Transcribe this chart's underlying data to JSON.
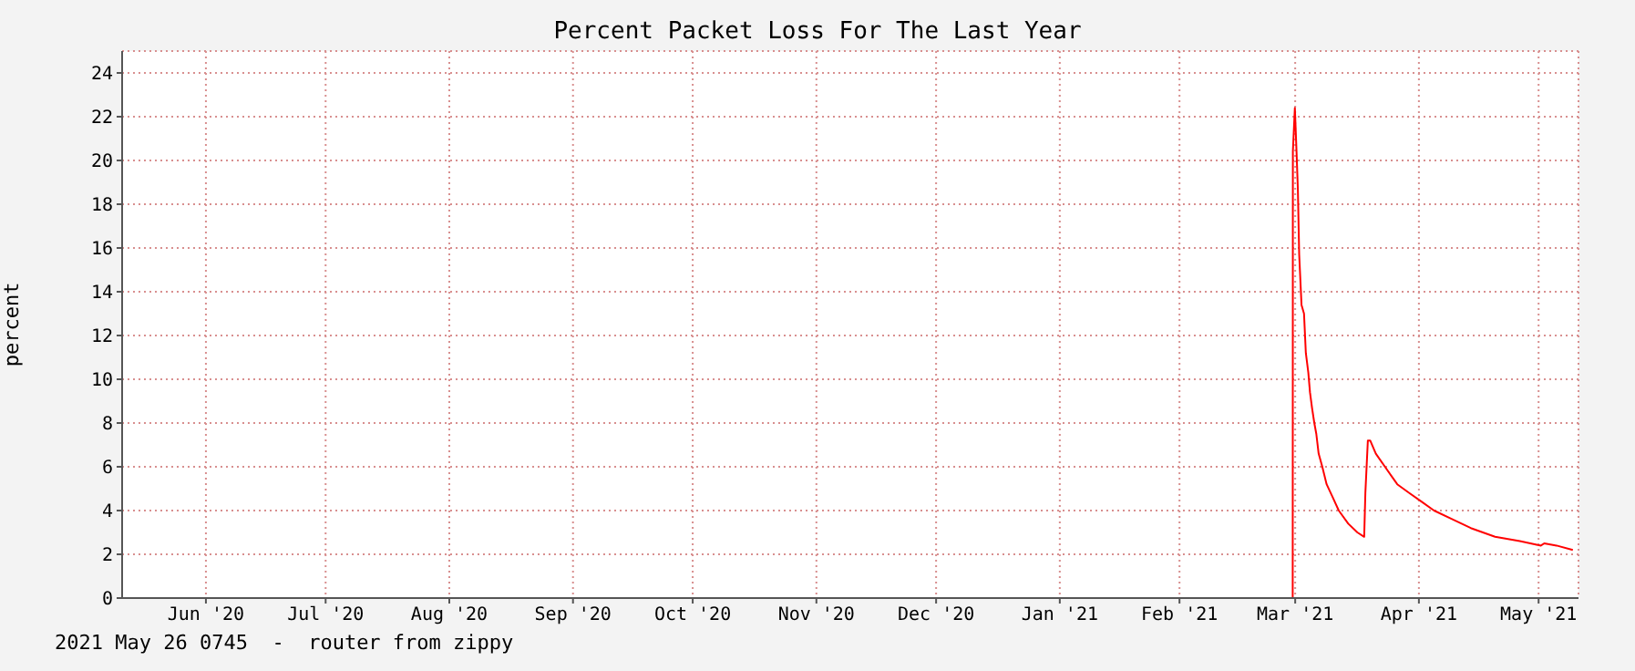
{
  "chart_data": {
    "type": "line",
    "title": "Percent Packet Loss For The Last Year",
    "ylabel": "percent",
    "annotations": [
      "2021 May 26 0745  -  router from zippy"
    ],
    "xlim": [
      "2020-05-26",
      "2021-05-26"
    ],
    "xticks": [
      {
        "value": "2020-06-16",
        "label": "Jun '20"
      },
      {
        "value": "2020-07-16",
        "label": "Jul '20"
      },
      {
        "value": "2020-08-16",
        "label": "Aug '20"
      },
      {
        "value": "2020-09-16",
        "label": "Sep '20"
      },
      {
        "value": "2020-10-16",
        "label": "Oct '20"
      },
      {
        "value": "2020-11-16",
        "label": "Nov '20"
      },
      {
        "value": "2020-12-16",
        "label": "Dec '20"
      },
      {
        "value": "2021-01-16",
        "label": "Jan '21"
      },
      {
        "value": "2021-02-15",
        "label": "Feb '21"
      },
      {
        "value": "2021-03-16",
        "label": "Mar '21"
      },
      {
        "value": "2021-04-16",
        "label": "Apr '21"
      },
      {
        "value": "2021-05-16",
        "label": "May '21"
      }
    ],
    "ylim": [
      0,
      25
    ],
    "yticks": [
      0,
      2,
      4,
      6,
      8,
      10,
      12,
      14,
      16,
      18,
      20,
      22,
      24
    ],
    "grid": true,
    "legend": false,
    "marker": "none",
    "line_style": "solid",
    "series": [
      {
        "color": "#ff0000",
        "x": [
          "2021-03-15T09:00",
          "2021-03-15T10:00",
          "2021-03-15T22:00",
          "2021-03-16T08:00",
          "2021-03-16T16:00",
          "2021-03-17T00:00",
          "2021-03-17T14:00",
          "2021-03-18T05:00",
          "2021-03-18T16:00",
          "2021-03-19T07:00",
          "2021-03-19T17:00",
          "2021-03-20T05:00",
          "2021-03-20T19:00",
          "2021-03-21T07:00",
          "2021-03-21T21:00",
          "2021-03-22T19:00",
          "2021-03-23T21:00",
          "2021-03-25T10:00",
          "2021-03-26T22:00",
          "2021-03-29T07:00",
          "2021-03-31T14:00",
          "2021-04-02T07:00",
          "2021-04-02T14:00",
          "2021-04-03T05:00",
          "2021-04-03T19:00",
          "2021-04-05T05:00",
          "2021-04-07T12:00",
          "2021-04-10T14:00",
          "2021-04-13T14:00",
          "2021-04-16T17:00",
          "2021-04-19T19:00",
          "2021-04-24T10:00",
          "2021-04-29T00:00",
          "2021-05-05T02:00",
          "2021-05-11T07:00",
          "2021-05-16T14:00",
          "2021-05-17T10:00",
          "2021-05-20T12:00",
          "2021-05-24T14:00"
        ],
        "values": [
          0,
          20.4,
          22.4,
          20.4,
          18.7,
          15.7,
          13.4,
          13.0,
          11.2,
          10.3,
          9.4,
          8.7,
          8.0,
          7.5,
          6.6,
          6.0,
          5.2,
          4.6,
          4.0,
          3.4,
          3.0,
          2.8,
          4.8,
          7.2,
          7.2,
          6.6,
          6.0,
          5.2,
          4.8,
          4.4,
          4.0,
          3.6,
          3.2,
          2.8,
          2.6,
          2.4,
          2.5,
          2.4,
          2.2
        ]
      }
    ]
  }
}
